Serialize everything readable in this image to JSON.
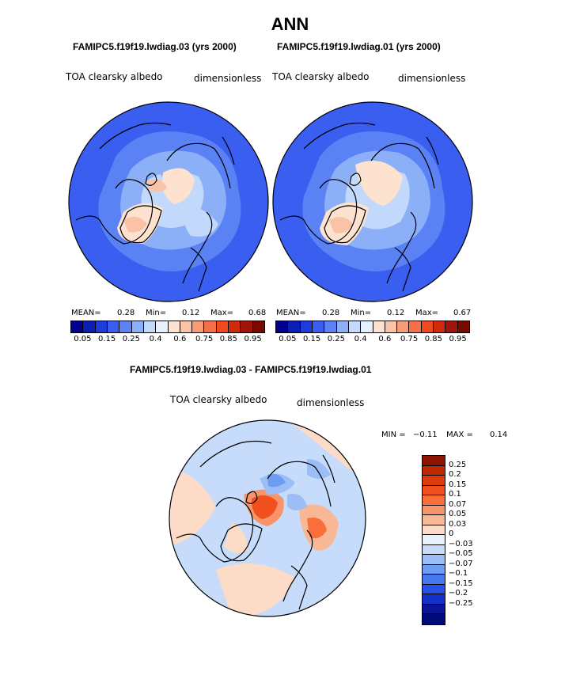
{
  "title": "ANN",
  "top_left": {
    "case_label": "FAMIPC5.f19f19.lwdiag.03 (yrs 2000)",
    "variable": "TOA clearsky albedo",
    "units": "dimensionless",
    "mean_label": "MEAN=",
    "mean": "0.28",
    "min_label": "Min=",
    "min": "0.12",
    "max_label": "Max=",
    "max": "0.68"
  },
  "top_right": {
    "case_label": "FAMIPC5.f19f19.lwdiag.01 (yrs 2000)",
    "variable": "TOA clearsky albedo",
    "units": "dimensionless",
    "mean_label": "MEAN=",
    "mean": "0.28",
    "min_label": "Min=",
    "min": "0.12",
    "max_label": "Max=",
    "max": "0.67"
  },
  "colorbar_top": {
    "colors": [
      "#00008c",
      "#0a1eb4",
      "#1e3cdc",
      "#3a5ef0",
      "#5a82f5",
      "#8cb0f8",
      "#c3d9fb",
      "#e6f0fc",
      "#fde2d0",
      "#fbc3a5",
      "#f89c78",
      "#f57046",
      "#ee4a1e",
      "#d02a0c",
      "#a0140a",
      "#7a0a00"
    ],
    "labels": [
      "0.05",
      "0.15",
      "0.25",
      "0.4",
      "0.6",
      "0.75",
      "0.85",
      "0.95"
    ]
  },
  "diff": {
    "case_label": "FAMIPC5.f19f19.lwdiag.03 - FAMIPC5.f19f19.lwdiag.01",
    "variable": "TOA clearsky albedo",
    "units": "dimensionless",
    "min_label": "MIN =",
    "min": "−0.11",
    "max_label": "MAX =",
    "max": "0.14"
  },
  "colorbar_diff": {
    "colors": [
      "#8c1400",
      "#c02800",
      "#dc3c0a",
      "#f0501e",
      "#fa6e3c",
      "#f8946a",
      "#f8b896",
      "#fcdcc6",
      "#e8f2fc",
      "#c6dcfa",
      "#9cbef6",
      "#6e9cf2",
      "#4678ee",
      "#2850e6",
      "#1430c8",
      "#0a1496",
      "#000a78"
    ],
    "labels": [
      "0.25",
      "0.2",
      "0.15",
      "0.1",
      "0.07",
      "0.05",
      "0.03",
      "0",
      "−0.03",
      "−0.05",
      "−0.07",
      "−0.1",
      "−0.15",
      "−0.2",
      "−0.25"
    ]
  }
}
